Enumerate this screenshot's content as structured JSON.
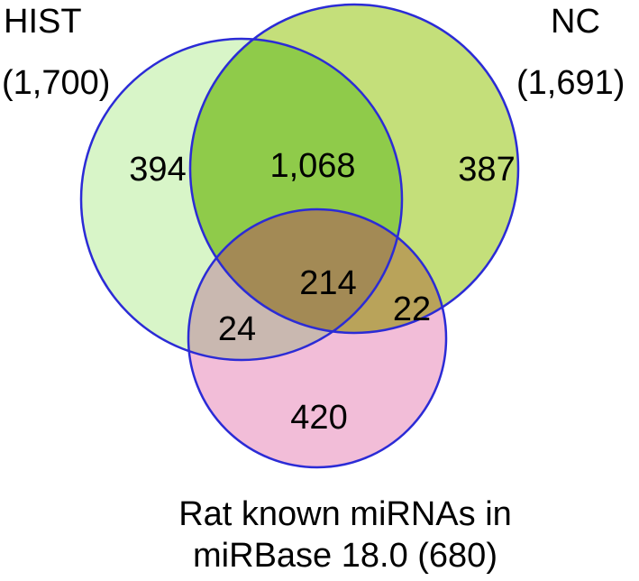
{
  "sets": {
    "hist": {
      "name": "HIST",
      "size": "(1,700)",
      "fill": "#d8f5c8",
      "stroke": "#2b2bd6"
    },
    "nc": {
      "name": "NC",
      "size": "(1,691)",
      "fill": "#c4df7a",
      "stroke": "#2b2bd6"
    },
    "mirbase": {
      "name_line1": "Rat known miRNAs in",
      "name_line2": "miRBase 18.0 (680)",
      "fill": "#f2bdd8",
      "stroke": "#2b2bd6"
    }
  },
  "regions": {
    "hist_only": "394",
    "hist_nc": "1,068",
    "nc_only": "387",
    "all_three": "214",
    "hist_mirbase": "24",
    "nc_mirbase": "22",
    "mirbase_only": "420"
  },
  "region_colors": {
    "hist_nc": "#8fcb4a",
    "hist_mirbase": "#c9b8b0",
    "nc_mirbase": "#b9a35a",
    "all_three": "#a38a55"
  }
}
